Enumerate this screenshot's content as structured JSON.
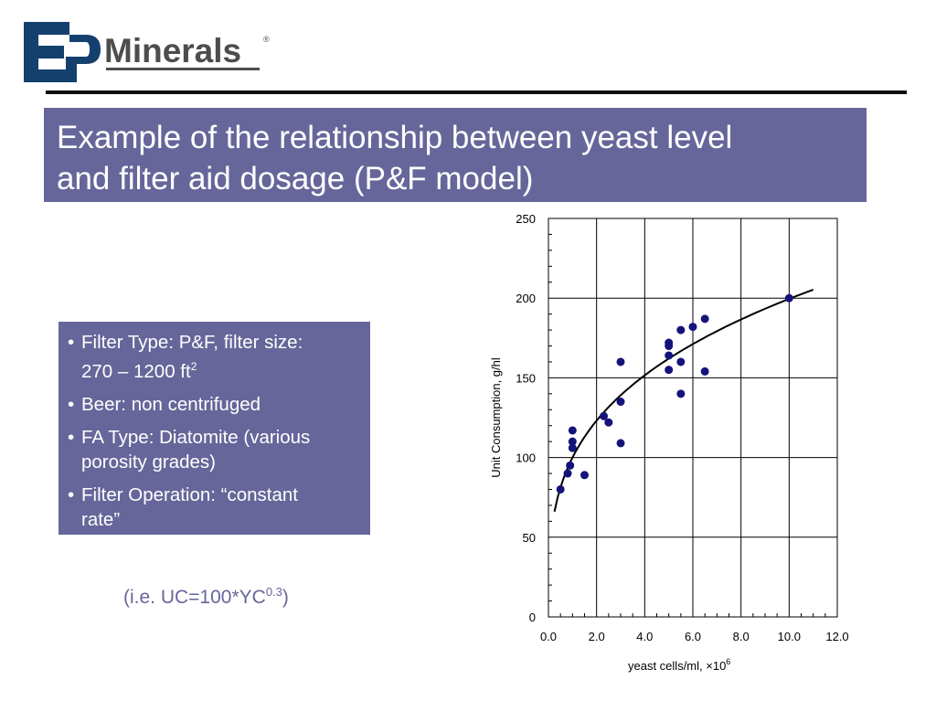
{
  "logo": {
    "mark": "EP",
    "name": "Minerals",
    "registered": "®"
  },
  "title": {
    "line1": "Example of the relationship between yeast level",
    "line2": "and filter aid dosage (P&F model)"
  },
  "bullets": [
    {
      "text": "Filter Type: P&F, filter size:",
      "continuation": "270 – 1200 ft",
      "sup": "2"
    },
    {
      "text": "Beer: non centrifuged"
    },
    {
      "text": "FA Type: Diatomite (various",
      "continuation": "porosity grades)"
    },
    {
      "text": "Filter Operation: “constant",
      "continuation": "rate”"
    }
  ],
  "bullet_symbol": "•",
  "formula": {
    "prefix": "(i.e. UC=100*YC",
    "sup": "0.3",
    "suffix": ")"
  },
  "colors": {
    "title_bg": "#67669a",
    "bullet_bg": "#67669a",
    "formula": "#67669a",
    "points": "#13137a",
    "logo_blue": "#14406e"
  },
  "chart_data": {
    "type": "scatter",
    "title": "",
    "xlabel": "yeast cells/ml, ×10",
    "xlabel_sup": "6",
    "ylabel": "Unit Consumption, g/hl",
    "xlim": [
      0,
      12
    ],
    "ylim": [
      0,
      250
    ],
    "xticks": [
      "0.0",
      "2.0",
      "4.0",
      "6.0",
      "8.0",
      "10.0",
      "12.0"
    ],
    "yticks": [
      "0",
      "50",
      "100",
      "150",
      "200",
      "250"
    ],
    "grid": true,
    "points": [
      [
        0.5,
        80
      ],
      [
        0.8,
        90
      ],
      [
        0.9,
        95
      ],
      [
        1.0,
        106
      ],
      [
        1.0,
        110
      ],
      [
        1.0,
        117
      ],
      [
        1.5,
        89
      ],
      [
        2.3,
        126
      ],
      [
        2.5,
        122
      ],
      [
        3.0,
        135
      ],
      [
        3.0,
        160
      ],
      [
        3.0,
        109
      ],
      [
        5.0,
        172
      ],
      [
        5.0,
        170
      ],
      [
        5.0,
        164
      ],
      [
        5.0,
        155
      ],
      [
        5.5,
        180
      ],
      [
        5.5,
        160
      ],
      [
        5.5,
        140
      ],
      [
        6.0,
        182
      ],
      [
        6.5,
        187
      ],
      [
        6.5,
        154
      ],
      [
        10.0,
        200
      ]
    ],
    "trend": {
      "name": "UC=100*YC^0.3",
      "coef": 100,
      "exp": 0.3,
      "x_range": [
        0.25,
        11.0
      ]
    }
  }
}
